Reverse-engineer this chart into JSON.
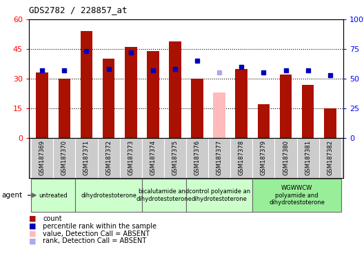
{
  "title": "GDS2782 / 228857_at",
  "samples": [
    "GSM187369",
    "GSM187370",
    "GSM187371",
    "GSM187372",
    "GSM187373",
    "GSM187374",
    "GSM187375",
    "GSM187376",
    "GSM187377",
    "GSM187378",
    "GSM187379",
    "GSM187380",
    "GSM187381",
    "GSM187382"
  ],
  "bar_values": [
    33,
    30,
    54,
    40,
    46,
    44,
    49,
    30,
    23,
    35,
    17,
    32,
    27,
    15
  ],
  "bar_absent": [
    false,
    false,
    false,
    false,
    false,
    false,
    false,
    false,
    true,
    false,
    false,
    false,
    false,
    false
  ],
  "rank_values": [
    57,
    57,
    73,
    58,
    72,
    57,
    58,
    65,
    55,
    60,
    55,
    57,
    57,
    53
  ],
  "rank_absent": [
    false,
    false,
    false,
    false,
    false,
    false,
    false,
    false,
    true,
    false,
    false,
    false,
    false,
    false
  ],
  "left_ylim": [
    0,
    60
  ],
  "left_yticks": [
    0,
    15,
    30,
    45,
    60
  ],
  "right_ylim": [
    0,
    100
  ],
  "right_yticks": [
    0,
    25,
    50,
    75,
    100
  ],
  "right_yticklabels": [
    "0",
    "25",
    "50",
    "75",
    "100%"
  ],
  "agent_groups": [
    {
      "label": "untreated",
      "start": 0,
      "end": 1,
      "color": "#ccffcc"
    },
    {
      "label": "dihydrotestoterone",
      "start": 2,
      "end": 4,
      "color": "#ccffcc"
    },
    {
      "label": "bicalutamide and\ndihydrotestoterone",
      "start": 5,
      "end": 6,
      "color": "#ccffcc"
    },
    {
      "label": "control polyamide an\ndihydrotestoterone",
      "start": 7,
      "end": 9,
      "color": "#ccffcc"
    },
    {
      "label": "WGWWCW\npolyamide and\ndihydrotestoterone",
      "start": 10,
      "end": 13,
      "color": "#aaffaa"
    }
  ],
  "bar_color_present": "#aa1100",
  "bar_color_absent": "#ffbbbb",
  "rank_color_present": "#0000bb",
  "rank_color_absent": "#aaaaee",
  "bar_width": 0.55,
  "grid_color": "#000000",
  "bg_color": "#cccccc",
  "plot_bg": "#ffffff",
  "legend_items": [
    {
      "color": "#aa1100",
      "label": "count"
    },
    {
      "color": "#0000bb",
      "label": "percentile rank within the sample"
    },
    {
      "color": "#ffbbbb",
      "label": "value, Detection Call = ABSENT"
    },
    {
      "color": "#aaaaee",
      "label": "rank, Detection Call = ABSENT"
    }
  ]
}
